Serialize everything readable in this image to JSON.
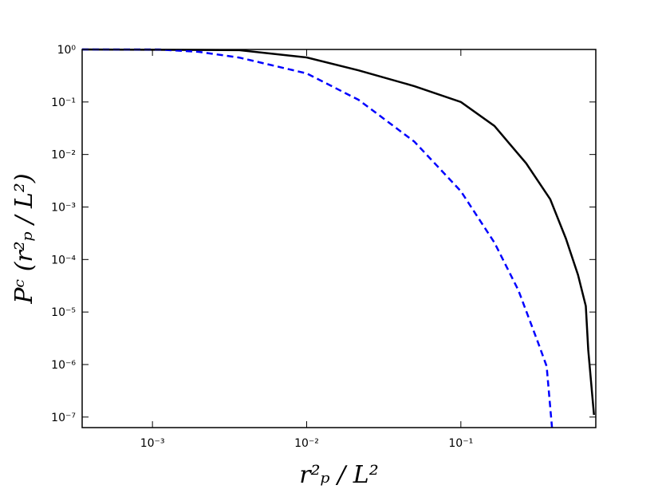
{
  "chart_data": {
    "type": "line",
    "log_x": true,
    "log_y": true,
    "x_label": "r²ₚ / L²",
    "y_label": "Pᶜ (r²ₚ / L²)",
    "xlim": [
      0.00035,
      0.75
    ],
    "ylim": [
      6.3e-08,
      1
    ],
    "xticks": [
      {
        "value": 0.001,
        "label": "10⁻³"
      },
      {
        "value": 0.01,
        "label": "10⁻²"
      },
      {
        "value": 0.1,
        "label": "10⁻¹"
      }
    ],
    "yticks": [
      {
        "value": 1,
        "label": "10⁰"
      },
      {
        "value": 0.1,
        "label": "10⁻¹"
      },
      {
        "value": 0.01,
        "label": "10⁻²"
      },
      {
        "value": 0.001,
        "label": "10⁻³"
      },
      {
        "value": 0.0001,
        "label": "10⁻⁴"
      },
      {
        "value": 1e-05,
        "label": "10⁻⁵"
      },
      {
        "value": 1e-06,
        "label": "10⁻⁶"
      },
      {
        "value": 1e-07,
        "label": "10⁻⁷"
      }
    ],
    "series": [
      {
        "color": "#000000",
        "dashed": false,
        "x": [
          0.00035,
          0.00366,
          0.01,
          0.0217,
          0.05,
          0.1,
          0.165,
          0.265,
          0.38,
          0.48,
          0.575,
          0.646,
          0.67,
          0.73
        ],
        "values": [
          1,
          0.97,
          0.705,
          0.4,
          0.2,
          0.1,
          0.035,
          0.0068,
          0.0014,
          0.00025,
          5.1e-05,
          1.3e-05,
          1.9e-06,
          1.1e-07
        ]
      },
      {
        "color": "#0000ff",
        "dashed": true,
        "x": [
          0.00035,
          0.0011,
          0.002,
          0.00366,
          0.01,
          0.0217,
          0.05,
          0.1,
          0.165,
          0.236,
          0.317,
          0.36,
          0.39
        ],
        "values": [
          1,
          1,
          0.9,
          0.7,
          0.35,
          0.11,
          0.0175,
          0.002,
          0.00021,
          2.6e-05,
          2.6e-06,
          9.3e-07,
          6.3e-08
        ]
      }
    ]
  }
}
